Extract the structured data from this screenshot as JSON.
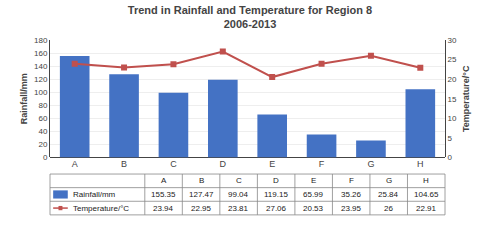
{
  "chart_data": {
    "type": "bar",
    "title": "Trend in Rainfall and Temperature for Region 8\n2006-2013",
    "categories": [
      "A",
      "B",
      "C",
      "D",
      "E",
      "F",
      "G",
      "H"
    ],
    "ylabel": "Rainfall/mm",
    "y2label": "Temperature/°C",
    "ylim": [
      0,
      180
    ],
    "yticks": [
      0,
      20,
      40,
      60,
      80,
      100,
      120,
      140,
      160,
      180
    ],
    "y2lim": [
      0,
      30
    ],
    "y2ticks": [
      0,
      5,
      10,
      15,
      20,
      25,
      30
    ],
    "grid": true,
    "series": [
      {
        "name": "Rainfall/mm",
        "type": "bar",
        "color": "#4472C4",
        "values": [
          155.35,
          127.47,
          99.04,
          119.15,
          65.99,
          35.26,
          25.84,
          104.65
        ]
      },
      {
        "name": "Temperature/°C",
        "type": "line",
        "axis": "y2",
        "color": "#C0504D",
        "marker": "square",
        "values": [
          23.94,
          22.95,
          23.81,
          27.06,
          20.53,
          23.95,
          26,
          22.91
        ]
      }
    ]
  }
}
